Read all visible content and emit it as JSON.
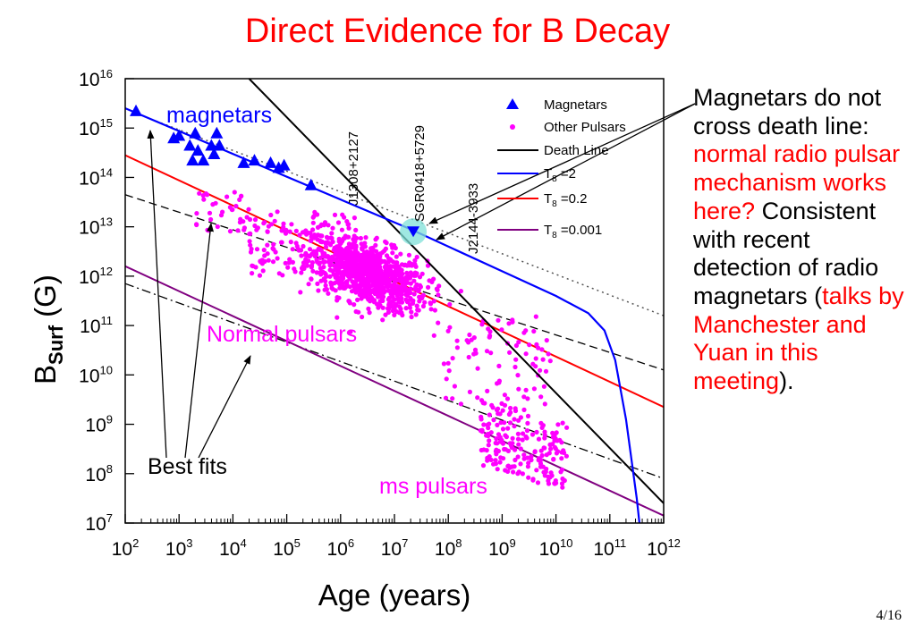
{
  "slide": {
    "title": "Direct Evidence for B Decay",
    "page": "4/16"
  },
  "side_text": {
    "parts": [
      {
        "text": "Magnetars do not cross death line: ",
        "color": "black"
      },
      {
        "text": "normal radio pulsar mechanism works here?",
        "color": "red"
      },
      {
        "text": " Consistent with recent detection of radio magnetars (",
        "color": "black"
      },
      {
        "text": "talks by Manchester and Yuan  in this meeting",
        "color": "red"
      },
      {
        "text": ").",
        "color": "black"
      }
    ]
  },
  "colors": {
    "title": "#ff0000",
    "magnetar": "#0000ff",
    "pulsar": "#ff00ff",
    "death_line": "#000000",
    "t8_2": "#0000ff",
    "t8_02": "#ff0000",
    "t8_0001": "#800080",
    "highlight": "#7fe0d8"
  },
  "chart_data": {
    "type": "scatter",
    "xlabel": "Age (years)",
    "ylabel": "B",
    "ylabel_sub": "Surf",
    "ylabel_unit": " (G)",
    "x_scale": "log",
    "y_scale": "log",
    "xlim": [
      100,
      1000000000000
    ],
    "ylim": [
      10000000,
      10000000000000000
    ],
    "x_ticks": [
      {
        "base": "10",
        "exp": "2"
      },
      {
        "base": "10",
        "exp": "3"
      },
      {
        "base": "10",
        "exp": "4"
      },
      {
        "base": "10",
        "exp": "5"
      },
      {
        "base": "10",
        "exp": "6"
      },
      {
        "base": "10",
        "exp": "7"
      },
      {
        "base": "10",
        "exp": "8"
      },
      {
        "base": "10",
        "exp": "9"
      },
      {
        "base": "10",
        "exp": "10"
      },
      {
        "base": "10",
        "exp": "11"
      },
      {
        "base": "10",
        "exp": "12"
      }
    ],
    "y_ticks": [
      {
        "base": "10",
        "exp": "7"
      },
      {
        "base": "10",
        "exp": "8"
      },
      {
        "base": "10",
        "exp": "9"
      },
      {
        "base": "10",
        "exp": "10"
      },
      {
        "base": "10",
        "exp": "11"
      },
      {
        "base": "10",
        "exp": "12"
      },
      {
        "base": "10",
        "exp": "13"
      },
      {
        "base": "10",
        "exp": "14"
      },
      {
        "base": "10",
        "exp": "15"
      },
      {
        "base": "10",
        "exp": "16"
      }
    ],
    "legend": {
      "placement": "top-right",
      "entries": [
        {
          "label": "Magnetars",
          "marker": "triangle",
          "color": "#0000ff"
        },
        {
          "label": "Other Pulsars",
          "marker": "dot",
          "color": "#ff00ff"
        },
        {
          "label": "Death Line",
          "marker": "line",
          "color": "#000000"
        },
        {
          "label": "T",
          "sub": "8",
          "value": " =2",
          "marker": "line",
          "color": "#0000ff"
        },
        {
          "label": "T",
          "sub": "8",
          "value": " =0.2",
          "marker": "line",
          "color": "#ff0000"
        },
        {
          "label": "T",
          "sub": "8",
          "value": " =0.001",
          "marker": "line",
          "color": "#800080"
        }
      ]
    },
    "annotations": {
      "magnetars": "magnetars",
      "normal_pulsars": "Normal pulsars",
      "ms_pulsars": "ms pulsars",
      "best_fits": "Best fits",
      "j1308": "J1308+2127",
      "sgr0418": "SGR0418+5729",
      "j2144": "J2144-3933"
    },
    "magnetars": [
      [
        2.2,
        15.35
      ],
      [
        2.9,
        14.8
      ],
      [
        3.0,
        14.85
      ],
      [
        3.2,
        14.65
      ],
      [
        3.25,
        14.35
      ],
      [
        3.3,
        14.9
      ],
      [
        3.35,
        14.55
      ],
      [
        3.45,
        14.35
      ],
      [
        3.6,
        14.65
      ],
      [
        3.65,
        14.48
      ],
      [
        3.7,
        14.9
      ],
      [
        3.75,
        14.65
      ],
      [
        4.2,
        14.3
      ],
      [
        4.4,
        14.35
      ],
      [
        4.7,
        14.3
      ],
      [
        4.85,
        14.2
      ],
      [
        4.95,
        14.25
      ],
      [
        5.45,
        13.85
      ]
    ],
    "sgr0418": [
      7.35,
      12.9
    ],
    "lines": {
      "death_line": [
        [
          4.3,
          16.0
        ],
        [
          12.0,
          7.4
        ]
      ],
      "t8_2": [
        [
          2.0,
          15.4
        ],
        [
          7.3,
          12.95
        ],
        [
          9.0,
          12.1
        ],
        [
          10.0,
          11.6
        ],
        [
          10.6,
          11.25
        ],
        [
          10.9,
          10.9
        ],
        [
          11.1,
          10.3
        ],
        [
          11.3,
          9.1
        ],
        [
          11.5,
          7.5
        ],
        [
          11.55,
          7.0
        ]
      ],
      "t8_02": [
        [
          2.0,
          14.45
        ],
        [
          12.0,
          9.35
        ]
      ],
      "t8_0001": [
        [
          2.0,
          12.2
        ],
        [
          12.0,
          7.15
        ]
      ],
      "fit_dotted": [
        [
          2.2,
          15.3
        ],
        [
          12.0,
          11.2
        ]
      ],
      "fit_dashed": [
        [
          2.0,
          13.65
        ],
        [
          12.0,
          10.1
        ]
      ],
      "fit_dashdot": [
        [
          2.0,
          11.85
        ],
        [
          12.0,
          7.9
        ]
      ]
    }
  }
}
